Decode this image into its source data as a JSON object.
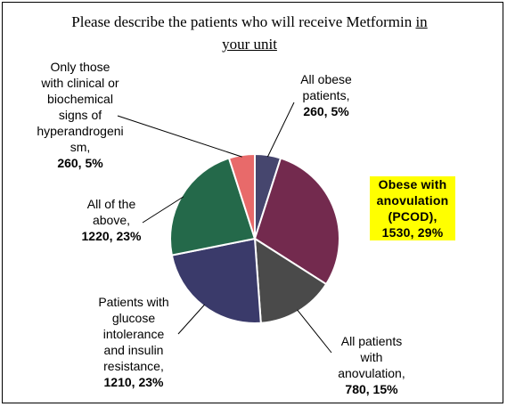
{
  "chart_data": {
    "type": "pie",
    "title_parts": [
      "Please describe the patients who will receive Metformin ",
      "in",
      "your unit"
    ],
    "slices": [
      {
        "label": "All obese patients,",
        "value": 260,
        "pct": "5%",
        "value_text": "260, 5%",
        "color": "#46466e"
      },
      {
        "label": "Obese with anovulation (PCOD),",
        "value": 1530,
        "pct": "29%",
        "value_text": "1530, 29%",
        "color": "#732a4e"
      },
      {
        "label": "All patients with anovulation,",
        "value": 780,
        "pct": "15%",
        "value_text": "780, 15%",
        "color": "#4a4a4a"
      },
      {
        "label": "Patients with glucose intolerance and insulin resistance,",
        "value": 1210,
        "pct": "23%",
        "value_text": "1210, 23%",
        "color": "#3a3a6a"
      },
      {
        "label": "All of the above,",
        "value": 1220,
        "pct": "23%",
        "value_text": "1220, 23%",
        "color": "#24694a"
      },
      {
        "label": "Only those with clinical or biochemical signs of hyperandrogenism,",
        "value": 260,
        "pct": "5%",
        "value_text": "260, 5%",
        "color": "#e86a6a"
      }
    ],
    "label_lines": {
      "s0": [
        "All obese",
        "patients,"
      ],
      "s1": [
        "Obese with",
        "anovulation",
        "(PCOD),"
      ],
      "s2": [
        "All patients",
        "with",
        "anovulation,"
      ],
      "s3": [
        "Patients with",
        "glucose",
        "intolerance",
        "and insulin",
        "resistance,"
      ],
      "s4": [
        "All of the",
        "above,"
      ],
      "s5": [
        "Only those",
        "with clinical or",
        "biochemical",
        "signs of",
        "hyperandrogeni",
        "sm,"
      ]
    },
    "highlight_color": "#ffff00"
  }
}
